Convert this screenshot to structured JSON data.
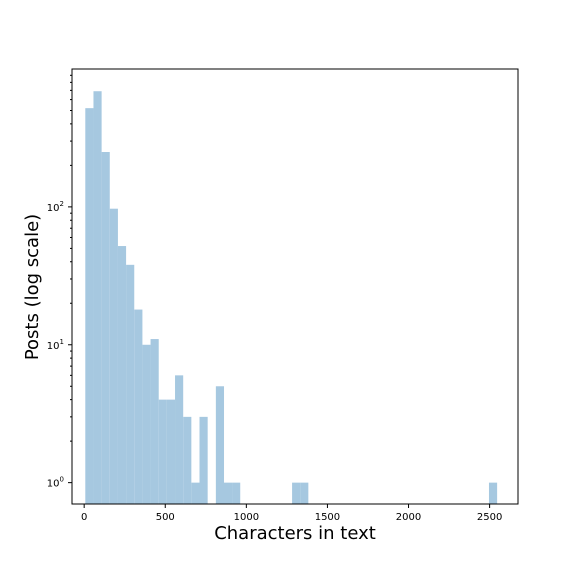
{
  "chart_data": {
    "type": "bar",
    "subtype": "histogram",
    "title": "",
    "xlabel": "Characters in text",
    "ylabel": "Posts (log scale)",
    "y_scale": "log",
    "xlim": [
      -75,
      2675
    ],
    "ylim": [
      0.7,
      1000
    ],
    "grid": false,
    "legend": "none",
    "bar_color": "#a6c8e0",
    "bin_width": 50.3,
    "x_ticks": [
      0,
      500,
      1000,
      1500,
      2000,
      2500
    ],
    "x_tick_labels": [
      "0",
      "500",
      "1000",
      "1500",
      "2000",
      "2500"
    ],
    "y_ticks": [
      1,
      10,
      100
    ],
    "y_tick_labels": [
      "10",
      "10",
      "10"
    ],
    "y_tick_exponents": [
      "0",
      "1",
      "2"
    ],
    "bins": [
      {
        "x0": 7.0,
        "count": 520
      },
      {
        "x0": 57.3,
        "count": 690
      },
      {
        "x0": 107.6,
        "count": 250
      },
      {
        "x0": 157.9,
        "count": 97
      },
      {
        "x0": 208.2,
        "count": 52
      },
      {
        "x0": 258.5,
        "count": 38
      },
      {
        "x0": 308.8,
        "count": 18
      },
      {
        "x0": 359.1,
        "count": 10
      },
      {
        "x0": 409.4,
        "count": 11
      },
      {
        "x0": 459.7,
        "count": 4
      },
      {
        "x0": 510.0,
        "count": 4
      },
      {
        "x0": 560.3,
        "count": 6
      },
      {
        "x0": 610.6,
        "count": 3
      },
      {
        "x0": 660.9,
        "count": 1
      },
      {
        "x0": 711.2,
        "count": 3
      },
      {
        "x0": 812.0,
        "count": 5
      },
      {
        "x0": 862.0,
        "count": 1
      },
      {
        "x0": 912.0,
        "count": 1
      },
      {
        "x0": 1282.0,
        "count": 1
      },
      {
        "x0": 1332.0,
        "count": 1
      },
      {
        "x0": 2496.0,
        "count": 1
      }
    ]
  }
}
